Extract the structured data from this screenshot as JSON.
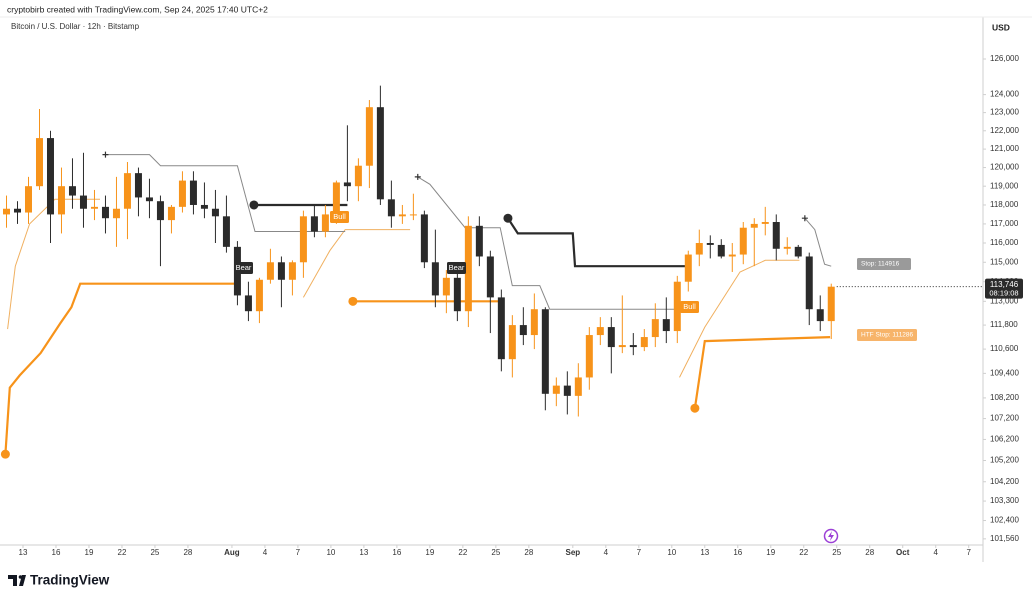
{
  "header": {
    "credit": "cryptobirb created with TradingView.com, Sep 24, 2025 17:40 UTC+2",
    "logo": "TradingView"
  },
  "chart_data": {
    "type": "candlestick",
    "title": "Bitcoin / U.S. Dollar · 12h · Bitstamp",
    "y_unit": "USD",
    "log_scale": true,
    "grid": false,
    "up_color": "#f7931a",
    "down_color": "#2b2b2b",
    "open": [
      117500,
      117800,
      117600,
      119000,
      121600,
      117500,
      119000,
      118500,
      117800,
      117900,
      117300,
      117800,
      119700,
      118400,
      118200,
      117200,
      117900,
      119300,
      118000,
      117800,
      117400,
      115800,
      113300,
      112500,
      114100,
      115000,
      114100,
      115000,
      117400,
      116600,
      117500,
      119200,
      119000,
      120100,
      123300,
      118300,
      117400,
      117500,
      117500,
      115000,
      113300,
      114200,
      112500,
      116900,
      115300,
      113200,
      110100,
      111800,
      111300,
      112600,
      108400,
      108800,
      108300,
      109200,
      111300,
      111700,
      110700,
      110800,
      110700,
      111200,
      112100,
      111500,
      114000,
      115400,
      116000,
      115900,
      115300,
      115400,
      116800,
      117000,
      117100,
      115700,
      115800,
      115300,
      112600,
      112000
    ],
    "high": [
      118500,
      118200,
      119500,
      123200,
      122000,
      120000,
      120500,
      120800,
      118800,
      118500,
      119500,
      120300,
      120000,
      119400,
      118500,
      118000,
      119800,
      119800,
      119200,
      118800,
      118500,
      116100,
      114000,
      114200,
      115700,
      115300,
      115100,
      117700,
      118000,
      118000,
      119300,
      122300,
      120500,
      123700,
      124500,
      119300,
      118000,
      118600,
      117700,
      116700,
      114600,
      114900,
      117400,
      117400,
      115600,
      113600,
      112300,
      112700,
      113400,
      112700,
      109200,
      109500,
      109900,
      111700,
      112200,
      112200,
      113300,
      111400,
      111600,
      112900,
      113200,
      114300,
      115600,
      116700,
      116400,
      116200,
      116000,
      117100,
      117300,
      117900,
      117500,
      116300,
      115900,
      115500,
      113300,
      113900
    ],
    "low": [
      116800,
      117000,
      117000,
      118800,
      116000,
      116500,
      117800,
      116800,
      117200,
      116500,
      115800,
      116200,
      117400,
      117300,
      114800,
      116500,
      117600,
      117500,
      117300,
      116000,
      115500,
      112800,
      112000,
      111900,
      113900,
      112700,
      113300,
      114200,
      116300,
      116300,
      117000,
      118200,
      118200,
      118900,
      118000,
      116800,
      117000,
      117200,
      114700,
      112700,
      112400,
      112000,
      111700,
      114800,
      111400,
      109500,
      109200,
      110800,
      110600,
      107600,
      107800,
      107400,
      107300,
      108600,
      110800,
      109400,
      110400,
      110300,
      110500,
      110700,
      110900,
      110900,
      113500,
      114800,
      115200,
      115200,
      114500,
      114900,
      114800,
      116400,
      115100,
      115400,
      115200,
      111800,
      111500,
      111100
    ],
    "close": [
      117800,
      117600,
      119000,
      121600,
      117500,
      119000,
      118500,
      117800,
      117900,
      117300,
      117800,
      119700,
      118400,
      118200,
      117200,
      117900,
      119300,
      118000,
      117800,
      117400,
      115800,
      113300,
      112500,
      114100,
      115000,
      114100,
      115000,
      117400,
      116600,
      117500,
      119200,
      119000,
      120100,
      123300,
      118300,
      117400,
      117500,
      117500,
      115000,
      113300,
      114200,
      112500,
      116900,
      115300,
      113200,
      110100,
      111800,
      111300,
      112600,
      108400,
      108800,
      108300,
      109200,
      111300,
      111700,
      110700,
      110800,
      110700,
      111200,
      112100,
      111500,
      114000,
      115400,
      116000,
      115900,
      115300,
      115400,
      116800,
      117000,
      117100,
      115700,
      115800,
      115300,
      112600,
      112000,
      113746
    ],
    "last_price": {
      "value": 113746,
      "label": "113,746"
    },
    "countdown": "08:19:08",
    "xlim": [
      0,
      89.3
    ],
    "xticks": [
      {
        "value": 2,
        "label": "13"
      },
      {
        "value": 5,
        "label": "16"
      },
      {
        "value": 8,
        "label": "19"
      },
      {
        "value": 11,
        "label": "22"
      },
      {
        "value": 14,
        "label": "25"
      },
      {
        "value": 17,
        "label": "28"
      },
      {
        "value": 21,
        "label": "Aug"
      },
      {
        "value": 24,
        "label": "4"
      },
      {
        "value": 27,
        "label": "7"
      },
      {
        "value": 30,
        "label": "10"
      },
      {
        "value": 33,
        "label": "13"
      },
      {
        "value": 36,
        "label": "16"
      },
      {
        "value": 39,
        "label": "19"
      },
      {
        "value": 42,
        "label": "22"
      },
      {
        "value": 45,
        "label": "25"
      },
      {
        "value": 48,
        "label": "28"
      },
      {
        "value": 52,
        "label": "Sep"
      },
      {
        "value": 55,
        "label": "4"
      },
      {
        "value": 58,
        "label": "7"
      },
      {
        "value": 61,
        "label": "10"
      },
      {
        "value": 64,
        "label": "13"
      },
      {
        "value": 67,
        "label": "16"
      },
      {
        "value": 70,
        "label": "19"
      },
      {
        "value": 73,
        "label": "22"
      },
      {
        "value": 76,
        "label": "25"
      },
      {
        "value": 79,
        "label": "28"
      },
      {
        "value": 82,
        "label": "Oct"
      },
      {
        "value": 85,
        "label": "4"
      },
      {
        "value": 88,
        "label": "7"
      }
    ],
    "ylim": [
      101280,
      128400
    ],
    "yticks": [
      {
        "value": 126000,
        "label": "126,000"
      },
      {
        "value": 124000,
        "label": "124,000"
      },
      {
        "value": 123000,
        "label": "123,000"
      },
      {
        "value": 122000,
        "label": "122,000"
      },
      {
        "value": 121000,
        "label": "121,000"
      },
      {
        "value": 120000,
        "label": "120,000"
      },
      {
        "value": 119000,
        "label": "119,000"
      },
      {
        "value": 118000,
        "label": "118,000"
      },
      {
        "value": 117000,
        "label": "117,000"
      },
      {
        "value": 116000,
        "label": "116,000"
      },
      {
        "value": 115000,
        "label": "115,000"
      },
      {
        "value": 114000,
        "label": "114,000"
      },
      {
        "value": 113000,
        "label": "113,000"
      },
      {
        "value": 111800,
        "label": "111,800"
      },
      {
        "value": 110600,
        "label": "110,600"
      },
      {
        "value": 109400,
        "label": "109,400"
      },
      {
        "value": 108200,
        "label": "108,200"
      },
      {
        "value": 107200,
        "label": "107,200"
      },
      {
        "value": 106200,
        "label": "106,200"
      },
      {
        "value": 105200,
        "label": "105,200"
      },
      {
        "value": 104200,
        "label": "104,200"
      },
      {
        "value": 103300,
        "label": "103,300"
      },
      {
        "value": 102400,
        "label": "102,400"
      },
      {
        "value": 101560,
        "label": "101,560"
      }
    ],
    "lines": [
      {
        "color": "#f7931a",
        "width": 2.2,
        "dot": true,
        "x": [
          0.4,
          0.8,
          1.7,
          3.6,
          5.4,
          6.4,
          7.2,
          21.7,
          null,
          32,
          45.5,
          null,
          63.1,
          64.0,
          75.4
        ],
        "values": [
          105500,
          108700,
          109300,
          110400,
          111900,
          112700,
          113900,
          113900,
          null,
          113000,
          113000,
          null,
          107700,
          111000,
          111200
        ]
      },
      {
        "color": "#f0b060",
        "width": 1,
        "x": [
          0.6,
          1.3,
          2.6,
          4.9,
          9.0,
          null,
          27.5,
          29.9,
          31.3,
          37.2,
          null,
          61.7,
          64.0,
          67.2,
          69.5,
          72.6
        ],
        "values": [
          111600,
          114800,
          117000,
          118300,
          118300,
          null,
          113200,
          115600,
          116700,
          116700,
          null,
          109200,
          111700,
          114500,
          115100,
          115100
        ]
      },
      {
        "color": "#888888",
        "width": 1,
        "cross": true,
        "x": [
          9.5,
          13.5,
          14.5,
          21.5,
          23.1,
          31.3,
          null,
          37.9,
          39.0,
          42.2,
          45.4,
          46.5,
          49.0,
          49.9,
          62.2,
          null,
          73.1,
          74.0,
          74.9,
          75.5
        ],
        "values": [
          120700,
          120700,
          120100,
          120100,
          116600,
          116600,
          null,
          119500,
          119100,
          116800,
          116800,
          113800,
          113800,
          112600,
          112600,
          null,
          117300,
          116700,
          114900,
          114800
        ]
      },
      {
        "color": "#2b2b2b",
        "width": 2.2,
        "dot": true,
        "x": [
          23.0,
          31.5,
          null,
          46.1,
          47.0,
          52.0,
          52.2,
          62.5
        ],
        "values": [
          118000,
          118000,
          null,
          117300,
          116500,
          116500,
          114800,
          114800
        ]
      }
    ],
    "signals": [
      "Bull",
      "Bear",
      "Bear",
      "Bull"
    ],
    "stop_labels": [
      "Stop: 114916",
      "HTF Stop: 111286"
    ]
  }
}
